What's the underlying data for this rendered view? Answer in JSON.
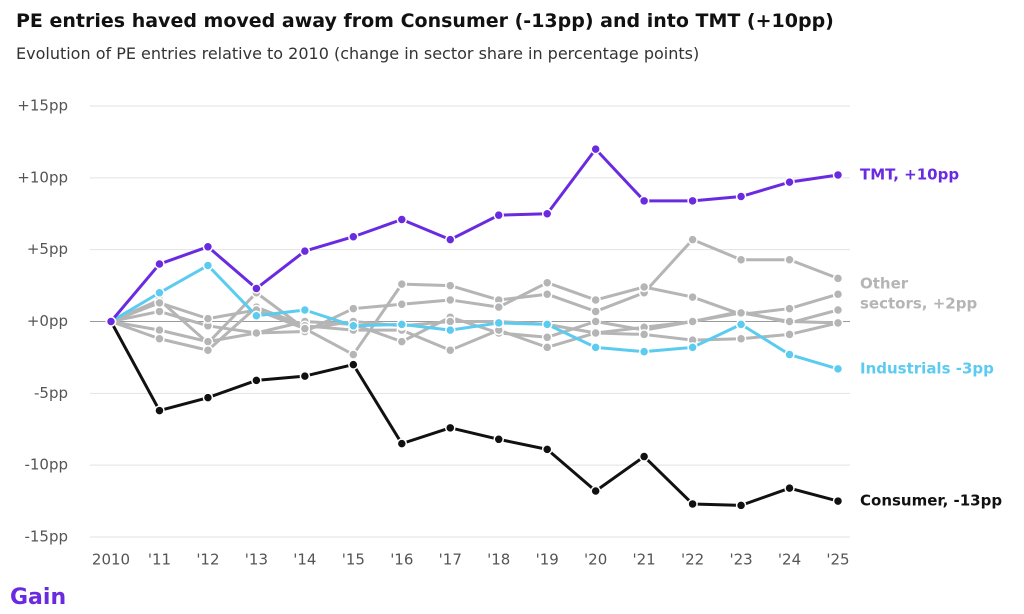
{
  "chart_data": {
    "type": "line",
    "title": "PE entries haved moved away from Consumer (-13pp) and into TMT (+10pp)",
    "subtitle": "Evolution of PE entries relative to 2010 (change in sector share in percentage points)",
    "categories": [
      "2010",
      "'11",
      "'12",
      "'13",
      "'14",
      "'15",
      "'16",
      "'17",
      "'18",
      "'19",
      "'20",
      "'21",
      "'22",
      "'23",
      "'24",
      "'25"
    ],
    "ylim": [
      -15,
      15
    ],
    "yticks": [
      {
        "value": -15,
        "label": "-15pp"
      },
      {
        "value": -10,
        "label": "-10pp"
      },
      {
        "value": -5,
        "label": "-5pp"
      },
      {
        "value": 0,
        "label": "+0pp"
      },
      {
        "value": 5,
        "label": "+5pp"
      },
      {
        "value": 10,
        "label": "+10pp"
      },
      {
        "value": 15,
        "label": "+15pp"
      }
    ],
    "grid": true,
    "series": [
      {
        "color": "#b5b5b5",
        "values": [
          0,
          1.5,
          -1.5,
          2.0,
          -0.5,
          -2.3,
          2.6,
          2.5,
          1.5,
          1.9,
          0.7,
          2.0,
          5.7,
          4.3,
          4.3,
          3.0
        ]
      },
      {
        "name": "Other sectors, +2pp",
        "color": "#b5b5b5",
        "values": [
          0,
          0.7,
          -0.3,
          -0.8,
          -0.7,
          0.9,
          1.2,
          1.5,
          1.0,
          2.7,
          1.5,
          2.4,
          1.7,
          0.5,
          0.9,
          1.9
        ]
      },
      {
        "color": "#b5b5b5",
        "values": [
          0,
          -0.6,
          -1.4,
          -0.8,
          0.0,
          -0.2,
          -1.4,
          0.3,
          -0.8,
          -1.1,
          0.0,
          -0.6,
          0.0,
          0.7,
          -0.1,
          0.8
        ]
      },
      {
        "color": "#b5b5b5",
        "values": [
          0,
          -1.2,
          -2.0,
          1.0,
          -0.3,
          -0.6,
          -0.6,
          -2.0,
          -0.6,
          -1.8,
          -0.8,
          -0.4,
          0.0,
          0.6,
          0.0,
          -0.1
        ]
      },
      {
        "color": "#b5b5b5",
        "values": [
          0,
          1.3,
          0.2,
          0.8,
          -0.5,
          0.0,
          -0.3,
          0.0,
          0.0,
          -0.2,
          -0.8,
          -0.9,
          -1.3,
          -1.2,
          -0.9,
          -0.1
        ]
      },
      {
        "name": "Industrials -3pp",
        "color": "#5ccbf0",
        "values": [
          0,
          2.0,
          3.9,
          0.4,
          0.8,
          -0.3,
          -0.2,
          -0.6,
          -0.1,
          -0.2,
          -1.8,
          -2.1,
          -1.8,
          -0.2,
          -2.3,
          -3.3
        ]
      },
      {
        "name": "Consumer, -13pp",
        "color": "#111111",
        "values": [
          0,
          -6.2,
          -5.3,
          -4.1,
          -3.8,
          -3.0,
          -8.5,
          -7.4,
          -8.2,
          -8.9,
          -11.8,
          -9.4,
          -12.7,
          -12.8,
          -11.6,
          -12.5
        ]
      },
      {
        "name": "TMT, +10pp",
        "color": "#6a2be0",
        "values": [
          0,
          4.0,
          5.2,
          2.3,
          4.9,
          5.9,
          7.1,
          5.7,
          7.4,
          7.5,
          12.0,
          8.4,
          8.4,
          8.7,
          9.7,
          10.2
        ]
      }
    ]
  },
  "footer": {
    "logo": "Gain"
  }
}
